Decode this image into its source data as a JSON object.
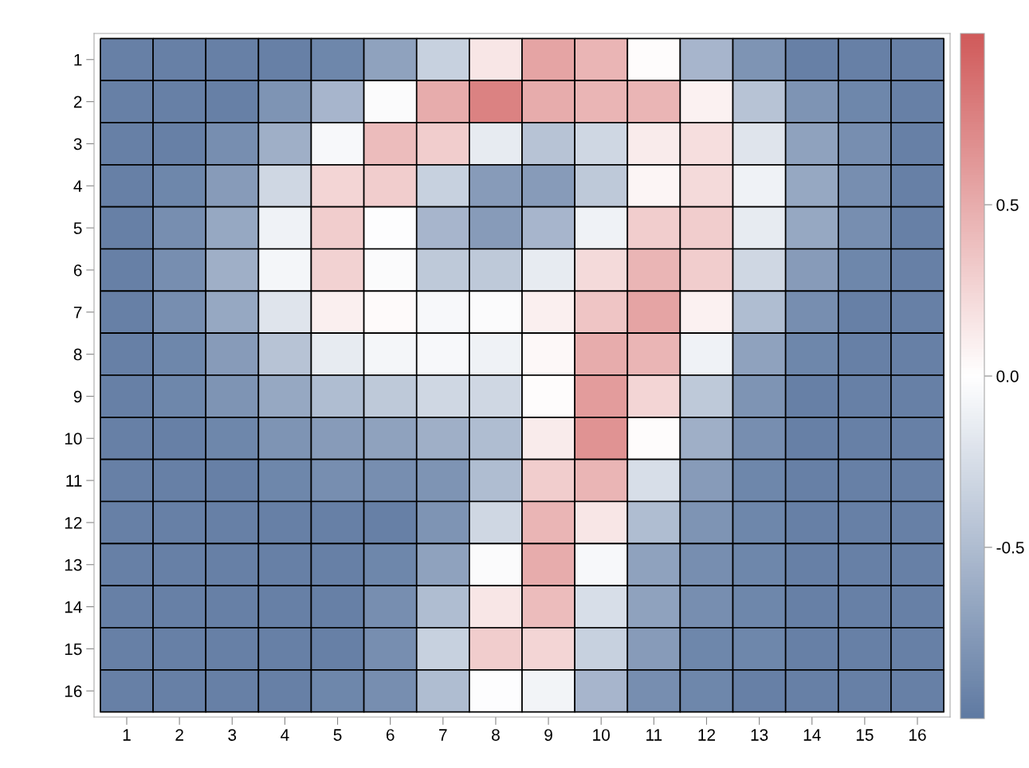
{
  "chart_data": {
    "type": "heatmap",
    "categories": [
      "1",
      "2",
      "3",
      "4",
      "5",
      "6",
      "7",
      "8",
      "9",
      "10",
      "11",
      "12",
      "13",
      "14",
      "15",
      "16"
    ],
    "y_categories": [
      "1",
      "2",
      "3",
      "4",
      "5",
      "6",
      "7",
      "8",
      "9",
      "10",
      "11",
      "12",
      "13",
      "14",
      "15",
      "16"
    ],
    "cells": [
      [
        -0.95,
        -0.95,
        -0.95,
        -0.95,
        -0.9,
        -0.7,
        -0.35,
        0.15,
        0.55,
        0.45,
        0.02,
        -0.55,
        -0.8,
        -0.95,
        -0.95,
        -0.95
      ],
      [
        -0.95,
        -0.95,
        -0.95,
        -0.8,
        -0.55,
        -0.03,
        0.5,
        0.75,
        0.5,
        0.45,
        0.45,
        0.08,
        -0.45,
        -0.8,
        -0.9,
        -0.95
      ],
      [
        -0.95,
        -0.95,
        -0.85,
        -0.6,
        -0.05,
        0.4,
        0.3,
        -0.15,
        -0.45,
        -0.3,
        0.12,
        0.2,
        -0.2,
        -0.7,
        -0.85,
        -0.95
      ],
      [
        -0.95,
        -0.9,
        -0.75,
        -0.3,
        0.25,
        0.3,
        -0.35,
        -0.75,
        -0.75,
        -0.4,
        0.06,
        0.22,
        -0.1,
        -0.65,
        -0.85,
        -0.95
      ],
      [
        -0.95,
        -0.85,
        -0.65,
        -0.1,
        0.3,
        -0.01,
        -0.55,
        -0.75,
        -0.55,
        -0.1,
        0.3,
        0.3,
        -0.15,
        -0.65,
        -0.85,
        -0.95
      ],
      [
        -0.95,
        -0.85,
        -0.6,
        -0.07,
        0.27,
        -0.03,
        -0.4,
        -0.4,
        -0.15,
        0.22,
        0.45,
        0.3,
        -0.3,
        -0.75,
        -0.9,
        -0.95
      ],
      [
        -0.95,
        -0.85,
        -0.65,
        -0.2,
        0.1,
        0.03,
        -0.05,
        -0.03,
        0.1,
        0.35,
        0.55,
        0.08,
        -0.5,
        -0.85,
        -0.95,
        -0.95
      ],
      [
        -0.95,
        -0.9,
        -0.75,
        -0.45,
        -0.15,
        -0.07,
        -0.05,
        -0.1,
        0.04,
        0.5,
        0.45,
        -0.1,
        -0.7,
        -0.9,
        -0.95,
        -0.95
      ],
      [
        -0.95,
        -0.9,
        -0.8,
        -0.65,
        -0.5,
        -0.4,
        -0.3,
        -0.3,
        0.02,
        0.6,
        0.25,
        -0.4,
        -0.8,
        -0.95,
        -0.95,
        -0.95
      ],
      [
        -0.95,
        -0.95,
        -0.9,
        -0.8,
        -0.75,
        -0.7,
        -0.6,
        -0.5,
        0.12,
        0.65,
        0.02,
        -0.6,
        -0.85,
        -0.95,
        -0.95,
        -0.95
      ],
      [
        -0.95,
        -0.95,
        -0.95,
        -0.9,
        -0.85,
        -0.85,
        -0.8,
        -0.5,
        0.3,
        0.45,
        -0.25,
        -0.75,
        -0.9,
        -0.95,
        -0.95,
        -0.95
      ],
      [
        -0.95,
        -0.95,
        -0.95,
        -0.95,
        -0.95,
        -0.95,
        -0.8,
        -0.3,
        0.45,
        0.15,
        -0.5,
        -0.8,
        -0.9,
        -0.95,
        -0.95,
        -0.95
      ],
      [
        -0.95,
        -0.95,
        -0.95,
        -0.95,
        -0.95,
        -0.9,
        -0.7,
        -0.03,
        0.5,
        -0.05,
        -0.7,
        -0.85,
        -0.9,
        -0.95,
        -0.95,
        -0.95
      ],
      [
        -0.95,
        -0.95,
        -0.95,
        -0.95,
        -0.95,
        -0.85,
        -0.5,
        0.15,
        0.4,
        -0.25,
        -0.7,
        -0.85,
        -0.9,
        -0.95,
        -0.95,
        -0.95
      ],
      [
        -0.95,
        -0.95,
        -0.95,
        -0.95,
        -0.95,
        -0.85,
        -0.35,
        0.3,
        0.25,
        -0.35,
        -0.75,
        -0.9,
        -0.9,
        -0.95,
        -0.95,
        -0.95
      ],
      [
        -0.95,
        -0.95,
        -0.95,
        -0.95,
        -0.9,
        -0.85,
        -0.5,
        -0.01,
        -0.08,
        -0.55,
        -0.85,
        -0.9,
        -0.95,
        -0.95,
        -0.95,
        -0.95
      ]
    ],
    "clim": [
      -1,
      1
    ],
    "cticks": [
      {
        "value": -0.5,
        "label": "-0.5"
      },
      {
        "value": 0,
        "label": "0.0"
      },
      {
        "value": 0.5,
        "label": "0.5"
      }
    ]
  }
}
